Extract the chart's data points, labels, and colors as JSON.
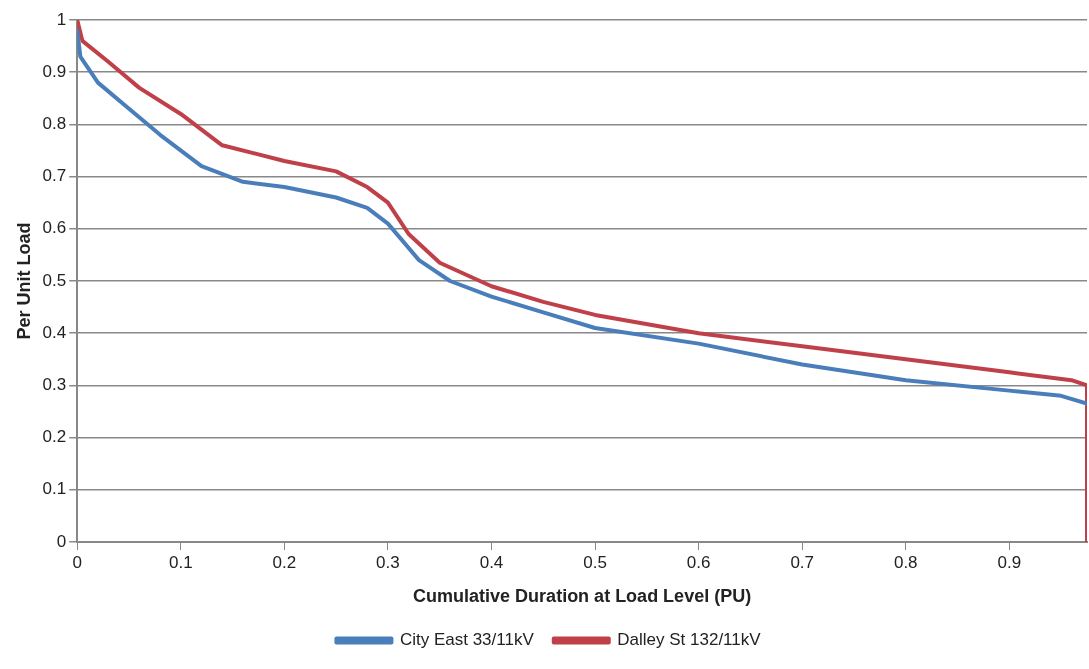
{
  "chart_data": {
    "type": "line",
    "xlabel": "Cumulative Duration at Load Level (PU)",
    "ylabel": "Per Unit Load",
    "xlim": [
      0,
      0.975
    ],
    "xticks": [
      0,
      0.1,
      0.2,
      0.3,
      0.4,
      0.5,
      0.6,
      0.7,
      0.8,
      0.9
    ],
    "ylim": [
      0,
      1
    ],
    "yticks": [
      0,
      0.1,
      0.2,
      0.3,
      0.4,
      0.5,
      0.6,
      0.7,
      0.8,
      0.9,
      1
    ],
    "grid": "y",
    "legend": "bottom",
    "marker": "none",
    "line_style": "solid",
    "series": [
      {
        "name": "City East 33/11kV",
        "color": "#4a7ebb",
        "x": [
          0,
          0.003,
          0.02,
          0.05,
          0.08,
          0.12,
          0.16,
          0.2,
          0.25,
          0.28,
          0.3,
          0.33,
          0.36,
          0.4,
          0.45,
          0.5,
          0.6,
          0.7,
          0.8,
          0.9,
          0.95,
          0.975
        ],
        "values": [
          0.98,
          0.93,
          0.88,
          0.83,
          0.78,
          0.72,
          0.69,
          0.68,
          0.66,
          0.64,
          0.61,
          0.54,
          0.5,
          0.47,
          0.44,
          0.41,
          0.38,
          0.34,
          0.31,
          0.29,
          0.28,
          0.265
        ]
      },
      {
        "name": "Dalley St 132/11kV",
        "color": "#c0404a",
        "x": [
          0,
          0.005,
          0.03,
          0.06,
          0.1,
          0.12,
          0.14,
          0.17,
          0.2,
          0.25,
          0.28,
          0.3,
          0.32,
          0.35,
          0.4,
          0.45,
          0.5,
          0.6,
          0.7,
          0.8,
          0.9,
          0.96,
          0.975,
          0.975
        ],
        "values": [
          1,
          0.96,
          0.92,
          0.87,
          0.82,
          0.79,
          0.76,
          0.745,
          0.73,
          0.71,
          0.68,
          0.65,
          0.59,
          0.535,
          0.49,
          0.46,
          0.435,
          0.4,
          0.375,
          0.35,
          0.325,
          0.31,
          0.3,
          0
        ]
      }
    ]
  }
}
